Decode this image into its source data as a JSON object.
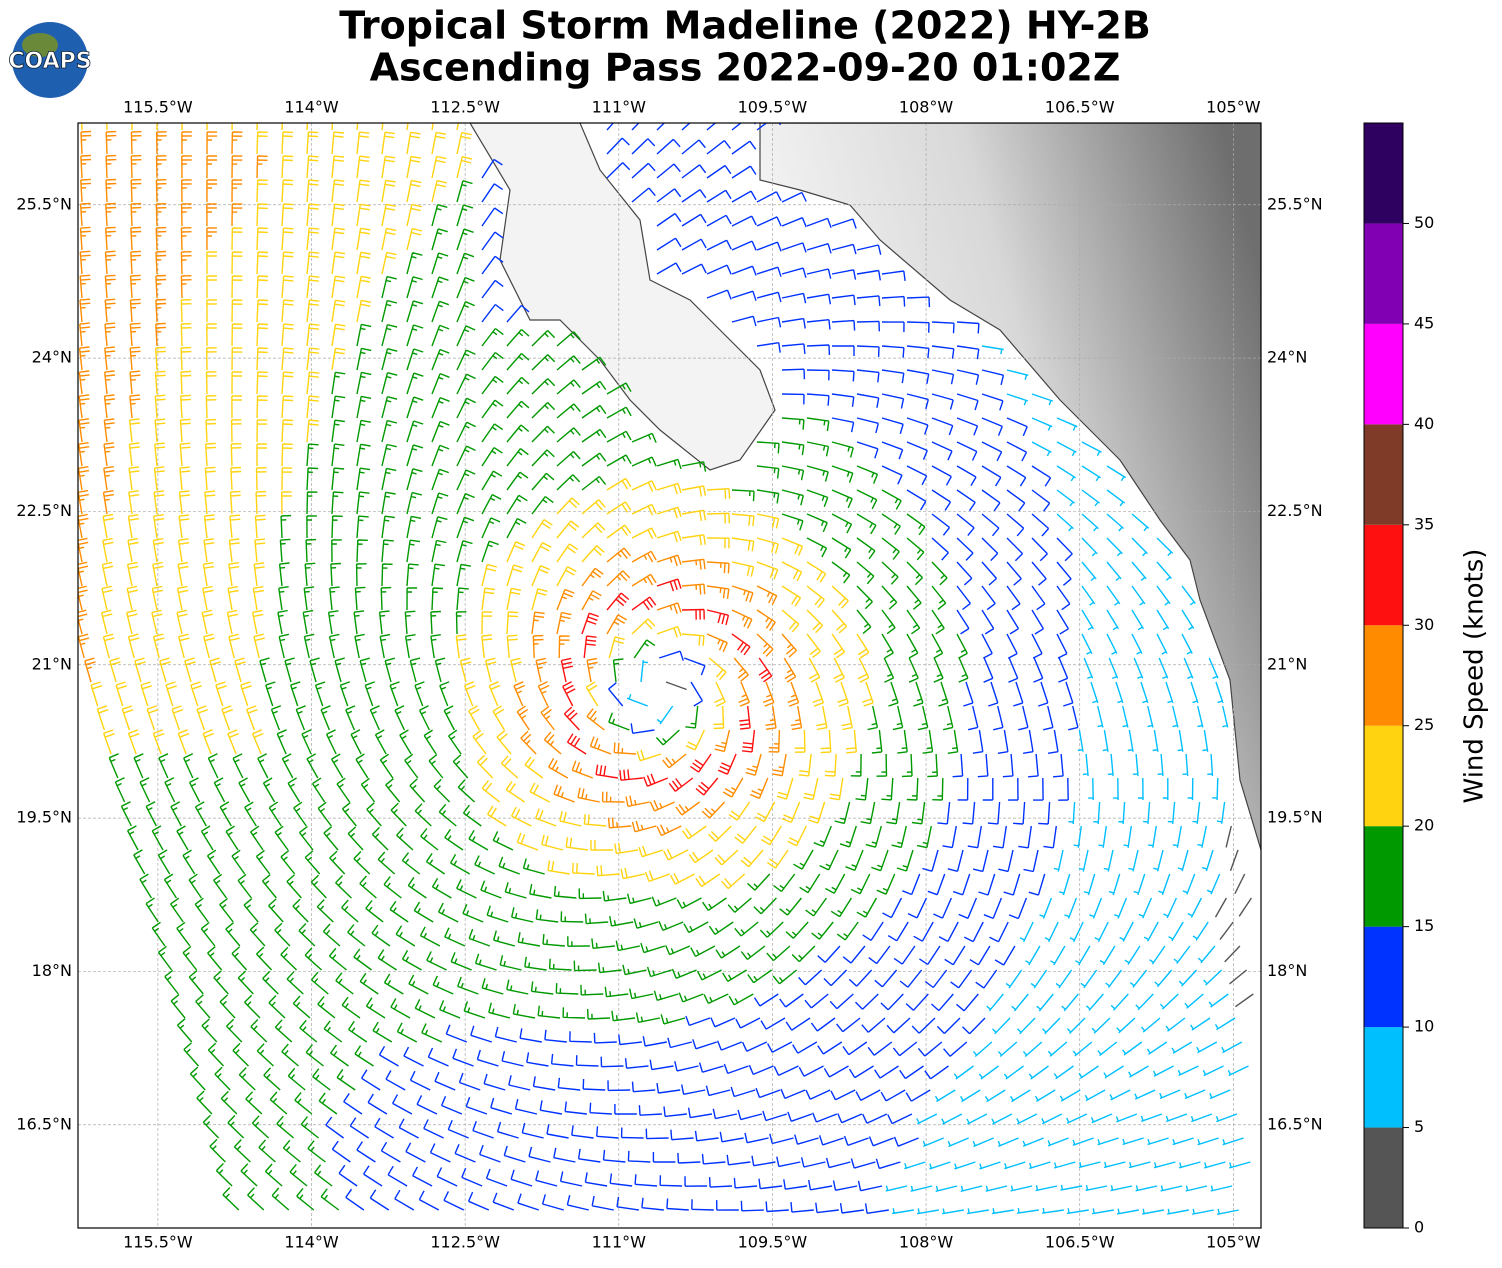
{
  "chart_data": {
    "type": "wind-barb-map",
    "title": "Tropical Storm Madeline (2022) HY-2B",
    "subtitle": "Ascending Pass 2022-09-20 01:02Z",
    "logo_text": "COAPS",
    "xlim": [
      -116.28,
      -104.73
    ],
    "ylim": [
      15.49,
      26.3
    ],
    "xticks": [
      {
        "value": -115.5,
        "label": "115.5°W"
      },
      {
        "value": -114,
        "label": "114°W"
      },
      {
        "value": -112.5,
        "label": "112.5°W"
      },
      {
        "value": -111,
        "label": "111°W"
      },
      {
        "value": -109.5,
        "label": "109.5°W"
      },
      {
        "value": -108,
        "label": "108°W"
      },
      {
        "value": -106.5,
        "label": "106.5°W"
      },
      {
        "value": -105,
        "label": "105°W"
      }
    ],
    "yticks": [
      {
        "value": 16.5,
        "label": "16.5°N"
      },
      {
        "value": 18,
        "label": "18°N"
      },
      {
        "value": 19.5,
        "label": "19.5°N"
      },
      {
        "value": 21,
        "label": "21°N"
      },
      {
        "value": 22.5,
        "label": "22.5°N"
      },
      {
        "value": 24,
        "label": "24°N"
      },
      {
        "value": 25.5,
        "label": "25.5°N"
      }
    ],
    "grid": true,
    "colorbar": {
      "label": "Wind Speed (knots)",
      "bounds": [
        0,
        5,
        10,
        15,
        20,
        25,
        30,
        35,
        40,
        45,
        50,
        55
      ],
      "colors": [
        "#555555",
        "#00bfff",
        "#0033ff",
        "#009900",
        "#ffd310",
        "#ff8c00",
        "#ff1010",
        "#7f3a28",
        "#ff00ff",
        "#8200b4",
        "#2e005f"
      ],
      "ticks": [
        0,
        5,
        10,
        15,
        20,
        25,
        30,
        35,
        40,
        45,
        50
      ]
    }
  }
}
